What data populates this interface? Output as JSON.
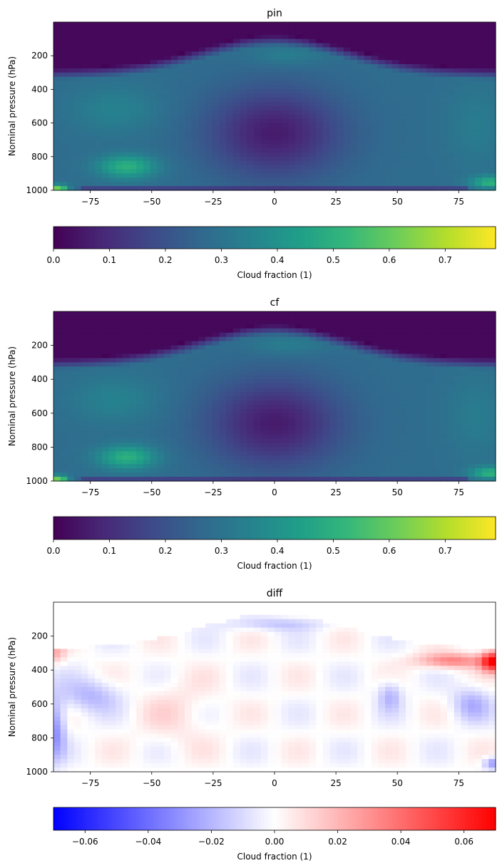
{
  "chart_data": [
    {
      "type": "heatmap",
      "title": "pin",
      "ylabel": "Nominal pressure (hPa)",
      "xlabel": "",
      "xlim": [
        -90,
        90
      ],
      "ylim": [
        1000,
        0
      ],
      "xticks": [
        -75,
        -50,
        -25,
        0,
        25,
        50,
        75
      ],
      "xtick_labels": [
        "−75",
        "−50",
        "−25",
        "0",
        "25",
        "50",
        "75"
      ],
      "yticks": [
        200,
        400,
        600,
        800,
        1000
      ],
      "ytick_labels": [
        "200",
        "400",
        "600",
        "800",
        "1000"
      ],
      "colormap": "viridis",
      "colorbar": {
        "label": "Cloud fraction (1)",
        "range": [
          0,
          0.79
        ],
        "ticks": [
          0,
          0.1,
          0.2,
          0.3,
          0.4,
          0.5,
          0.6,
          0.7
        ],
        "tick_labels": [
          "0.0",
          "0.1",
          "0.2",
          "0.3",
          "0.4",
          "0.5",
          "0.6",
          "0.7"
        ]
      },
      "features": [
        {
          "lat": -87,
          "p": 990,
          "value": 0.78
        },
        {
          "lat": -60,
          "p": 850,
          "value": 0.5
        },
        {
          "lat": -65,
          "p": 520,
          "value": 0.38
        },
        {
          "lat": 5,
          "p": 200,
          "value": 0.36
        },
        {
          "lat": 87,
          "p": 950,
          "value": 0.55
        },
        {
          "lat": 80,
          "p": 600,
          "value": 0.35
        }
      ]
    },
    {
      "type": "heatmap",
      "title": "cf",
      "ylabel": "Nominal pressure (hPa)",
      "xlabel": "",
      "xlim": [
        -90,
        90
      ],
      "ylim": [
        1000,
        0
      ],
      "xticks": [
        -75,
        -50,
        -25,
        0,
        25,
        50,
        75
      ],
      "xtick_labels": [
        "−75",
        "−50",
        "−25",
        "0",
        "25",
        "50",
        "75"
      ],
      "yticks": [
        200,
        400,
        600,
        800,
        1000
      ],
      "ytick_labels": [
        "200",
        "400",
        "600",
        "800",
        "1000"
      ],
      "colormap": "viridis",
      "colorbar": {
        "label": "Cloud fraction (1)",
        "range": [
          0,
          0.79
        ],
        "ticks": [
          0,
          0.1,
          0.2,
          0.3,
          0.4,
          0.5,
          0.6,
          0.7
        ],
        "tick_labels": [
          "0.0",
          "0.1",
          "0.2",
          "0.3",
          "0.4",
          "0.5",
          "0.6",
          "0.7"
        ]
      },
      "features": [
        {
          "lat": -87,
          "p": 990,
          "value": 0.78
        },
        {
          "lat": -60,
          "p": 850,
          "value": 0.5
        },
        {
          "lat": -65,
          "p": 520,
          "value": 0.38
        },
        {
          "lat": 5,
          "p": 200,
          "value": 0.36
        },
        {
          "lat": 87,
          "p": 950,
          "value": 0.55
        },
        {
          "lat": 80,
          "p": 600,
          "value": 0.35
        }
      ]
    },
    {
      "type": "heatmap",
      "title": "diff",
      "ylabel": "Nominal pressure (hPa)",
      "xlabel": "",
      "xlim": [
        -90,
        90
      ],
      "ylim": [
        1000,
        0
      ],
      "xticks": [
        -75,
        -50,
        -25,
        0,
        25,
        50,
        75
      ],
      "xtick_labels": [
        "−75",
        "−50",
        "−25",
        "0",
        "25",
        "50",
        "75"
      ],
      "yticks": [
        200,
        400,
        600,
        800,
        1000
      ],
      "ytick_labels": [
        "200",
        "400",
        "600",
        "800",
        "1000"
      ],
      "colormap": "bwr",
      "colorbar": {
        "label": "Cloud fraction (1)",
        "range": [
          -0.07,
          0.07
        ],
        "ticks": [
          -0.06,
          -0.04,
          -0.02,
          0,
          0.02,
          0.04,
          0.06
        ],
        "tick_labels": [
          "−0.06",
          "−0.04",
          "−0.02",
          "0.00",
          "0.02",
          "0.04",
          "0.06"
        ]
      },
      "features": [
        {
          "lat": 88,
          "p": 350,
          "value": 0.065
        },
        {
          "lat": 75,
          "p": 350,
          "value": 0.035
        },
        {
          "lat": -88,
          "p": 300,
          "value": 0.02
        },
        {
          "lat": -88,
          "p": 750,
          "value": -0.03
        },
        {
          "lat": -75,
          "p": 550,
          "value": -0.02
        },
        {
          "lat": 80,
          "p": 600,
          "value": -0.02
        },
        {
          "lat": 88,
          "p": 950,
          "value": -0.03
        },
        {
          "lat": 47,
          "p": 550,
          "value": -0.02
        },
        {
          "lat": 0,
          "p": 120,
          "value": -0.015
        }
      ]
    }
  ]
}
